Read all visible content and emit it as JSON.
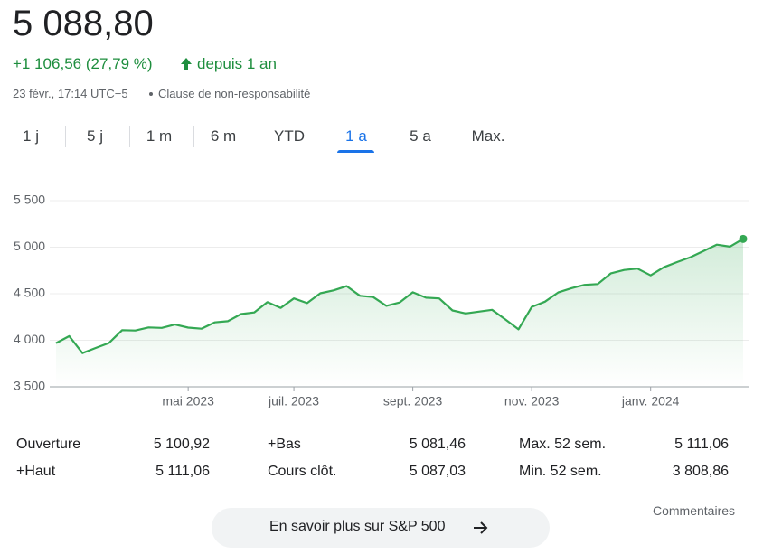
{
  "header": {
    "price": "5 088,80",
    "change": "+1 106,56 (27,79 %)",
    "period": "depuis 1 an",
    "timestamp": "23 févr., 17:14 UTC−5",
    "disclaimer": "Clause de non-responsabilité"
  },
  "tabs": {
    "items": [
      "1 j",
      "5 j",
      "1 m",
      "6 m",
      "YTD",
      "1 a",
      "5 a",
      "Max."
    ],
    "active": "1 a"
  },
  "chart_data": {
    "type": "line",
    "color": "#34a853",
    "categories": [
      null,
      null,
      null,
      null,
      null,
      null,
      null,
      null,
      null,
      null,
      "mai 2023",
      null,
      null,
      null,
      null,
      null,
      null,
      null,
      "juil. 2023",
      null,
      null,
      null,
      null,
      null,
      null,
      null,
      null,
      "sept. 2023",
      null,
      null,
      null,
      null,
      null,
      null,
      null,
      null,
      "nov. 2023",
      null,
      null,
      null,
      null,
      null,
      null,
      null,
      null,
      "janv. 2024",
      null,
      null,
      null,
      null,
      null,
      null,
      null
    ],
    "values": [
      3970,
      4045,
      3862,
      3917,
      3971,
      4109,
      4105,
      4138,
      4133,
      4169,
      4136,
      4124,
      4192,
      4205,
      4282,
      4299,
      4410,
      4348,
      4450,
      4399,
      4505,
      4536,
      4582,
      4478,
      4464,
      4370,
      4406,
      4516,
      4457,
      4450,
      4320,
      4288,
      4308,
      4327,
      4224,
      4117,
      4358,
      4415,
      4514,
      4559,
      4595,
      4604,
      4719,
      4755,
      4770,
      4697,
      4784,
      4840,
      4891,
      4959,
      5027,
      5006,
      5089
    ],
    "ylim": [
      3500,
      5500
    ],
    "yticks": [
      {
        "value": 3500,
        "label": "3 500"
      },
      {
        "value": 4000,
        "label": "4 000"
      },
      {
        "value": 4500,
        "label": "4 500"
      },
      {
        "value": 5000,
        "label": "5 000"
      },
      {
        "value": 5500,
        "label": "5 500"
      }
    ],
    "grid": true
  },
  "stats": {
    "rows": [
      [
        "Ouverture",
        "5 100,92",
        "+Bas",
        "5 081,46",
        "Max. 52 sem.",
        "5 111,06"
      ],
      [
        "+Haut",
        "5 111,06",
        "Cours clôt.",
        "5 087,03",
        "Min. 52 sem.",
        "3 808,86"
      ]
    ]
  },
  "comments": "Commentaires",
  "button": "En savoir plus sur S&P 500"
}
